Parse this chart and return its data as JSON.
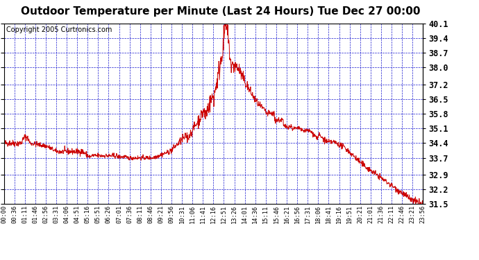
{
  "title": "Outdoor Temperature per Minute (Last 24 Hours) Tue Dec 27 00:00",
  "copyright": "Copyright 2005 Curtronics.com",
  "ylabel_right": [
    "40.1",
    "39.4",
    "38.7",
    "38.0",
    "37.2",
    "36.5",
    "35.8",
    "35.1",
    "34.4",
    "33.7",
    "32.9",
    "32.2",
    "31.5"
  ],
  "yticks": [
    40.1,
    39.4,
    38.7,
    38.0,
    37.2,
    36.5,
    35.8,
    35.1,
    34.4,
    33.7,
    32.9,
    32.2,
    31.5
  ],
  "xtick_labels": [
    "00:00",
    "00:36",
    "01:11",
    "01:46",
    "02:56",
    "03:31",
    "04:06",
    "04:51",
    "05:16",
    "05:51",
    "06:26",
    "07:01",
    "07:36",
    "08:11",
    "08:46",
    "09:21",
    "09:56",
    "10:31",
    "11:06",
    "11:41",
    "12:16",
    "12:51",
    "13:26",
    "14:01",
    "14:36",
    "15:11",
    "15:46",
    "16:21",
    "16:56",
    "17:31",
    "18:06",
    "18:41",
    "19:16",
    "19:51",
    "20:21",
    "21:01",
    "21:36",
    "22:11",
    "22:46",
    "23:21",
    "23:56"
  ],
  "line_color": "#cc0000",
  "bg_color": "#ffffff",
  "grid_color": "#0000cc",
  "title_fontsize": 11,
  "copyright_fontsize": 7
}
